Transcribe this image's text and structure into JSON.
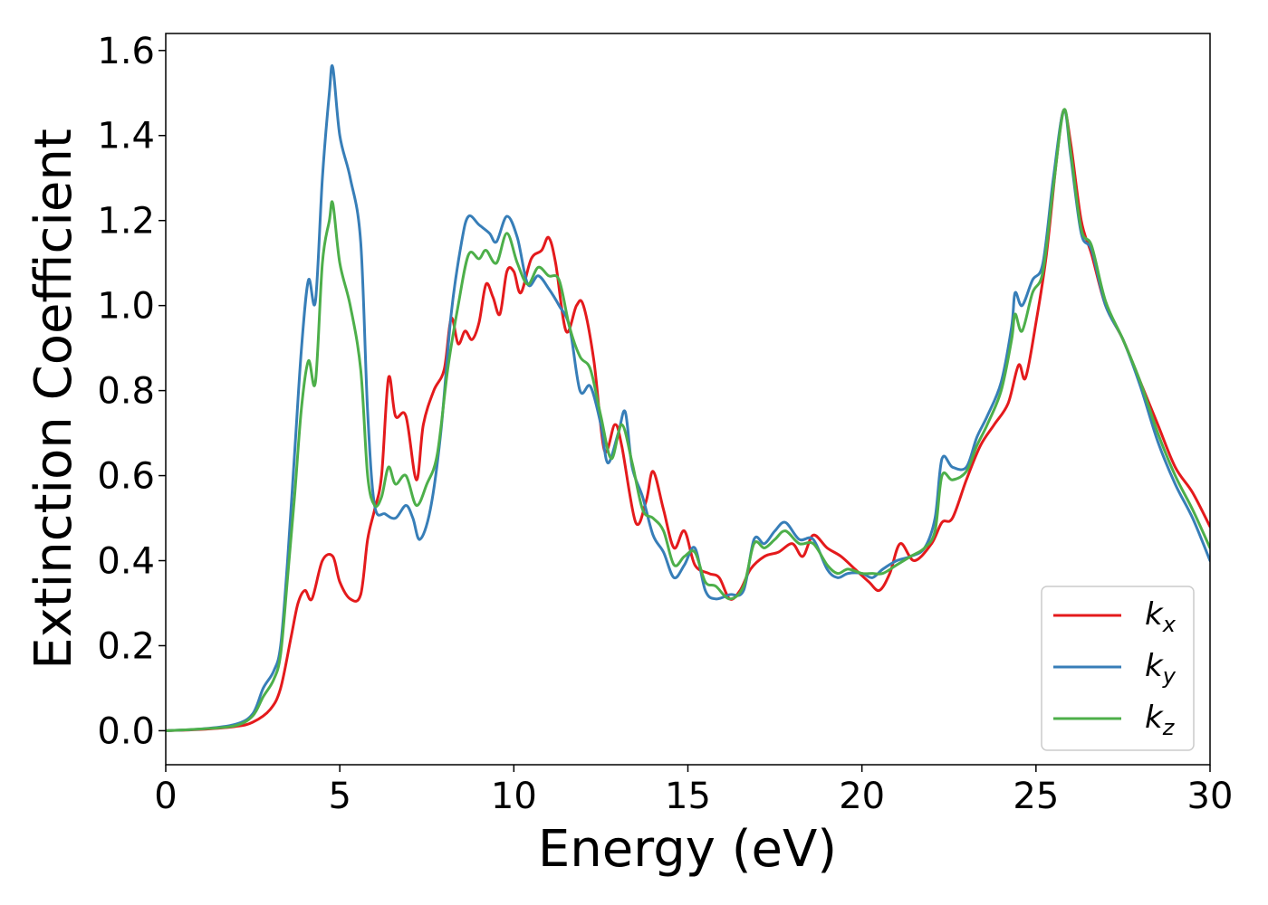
{
  "chart_data": {
    "type": "line",
    "title": "",
    "xlabel": "Energy (eV)",
    "ylabel": "Extinction Coefficient",
    "xlim": [
      0,
      30
    ],
    "ylim": [
      -0.08,
      1.64
    ],
    "xticks": [
      0,
      5,
      10,
      15,
      20,
      25,
      30
    ],
    "yticks": [
      0.0,
      0.2,
      0.4,
      0.6,
      0.8,
      1.0,
      1.2,
      1.4,
      1.6
    ],
    "xtick_labels": [
      "0",
      "5",
      "10",
      "15",
      "20",
      "25",
      "30"
    ],
    "ytick_labels": [
      "0.0",
      "0.2",
      "0.4",
      "0.6",
      "0.8",
      "1.0",
      "1.2",
      "1.4",
      "1.6"
    ],
    "grid": false,
    "legend_position": "lower-right",
    "series": [
      {
        "name": "k_x",
        "label_base": "k",
        "label_sub": "x",
        "color": "#e41a1c",
        "points": [
          [
            0,
            0
          ],
          [
            1,
            0.003
          ],
          [
            2,
            0.01
          ],
          [
            2.5,
            0.02
          ],
          [
            3,
            0.05
          ],
          [
            3.3,
            0.1
          ],
          [
            3.6,
            0.22
          ],
          [
            3.8,
            0.3
          ],
          [
            4.0,
            0.33
          ],
          [
            4.2,
            0.31
          ],
          [
            4.5,
            0.4
          ],
          [
            4.8,
            0.41
          ],
          [
            5.0,
            0.35
          ],
          [
            5.3,
            0.31
          ],
          [
            5.6,
            0.32
          ],
          [
            5.8,
            0.45
          ],
          [
            6.0,
            0.52
          ],
          [
            6.2,
            0.6
          ],
          [
            6.4,
            0.83
          ],
          [
            6.6,
            0.74
          ],
          [
            6.9,
            0.74
          ],
          [
            7.2,
            0.59
          ],
          [
            7.4,
            0.72
          ],
          [
            7.7,
            0.8
          ],
          [
            8.0,
            0.85
          ],
          [
            8.2,
            0.97
          ],
          [
            8.4,
            0.91
          ],
          [
            8.6,
            0.94
          ],
          [
            8.8,
            0.92
          ],
          [
            9.0,
            0.96
          ],
          [
            9.2,
            1.05
          ],
          [
            9.4,
            1.02
          ],
          [
            9.6,
            0.98
          ],
          [
            9.8,
            1.08
          ],
          [
            10.0,
            1.08
          ],
          [
            10.2,
            1.03
          ],
          [
            10.5,
            1.11
          ],
          [
            10.8,
            1.13
          ],
          [
            11.0,
            1.16
          ],
          [
            11.2,
            1.1
          ],
          [
            11.5,
            0.94
          ],
          [
            11.8,
            1.0
          ],
          [
            12.0,
            1.0
          ],
          [
            12.3,
            0.87
          ],
          [
            12.6,
            0.66
          ],
          [
            12.9,
            0.72
          ],
          [
            13.1,
            0.67
          ],
          [
            13.5,
            0.49
          ],
          [
            13.8,
            0.54
          ],
          [
            14.0,
            0.61
          ],
          [
            14.3,
            0.52
          ],
          [
            14.6,
            0.43
          ],
          [
            14.9,
            0.47
          ],
          [
            15.2,
            0.39
          ],
          [
            15.6,
            0.37
          ],
          [
            15.9,
            0.36
          ],
          [
            16.2,
            0.31
          ],
          [
            16.5,
            0.33
          ],
          [
            16.8,
            0.38
          ],
          [
            17.2,
            0.41
          ],
          [
            17.6,
            0.42
          ],
          [
            18.0,
            0.44
          ],
          [
            18.3,
            0.41
          ],
          [
            18.6,
            0.46
          ],
          [
            19.0,
            0.43
          ],
          [
            19.4,
            0.41
          ],
          [
            19.8,
            0.38
          ],
          [
            20.2,
            0.35
          ],
          [
            20.5,
            0.33
          ],
          [
            20.8,
            0.37
          ],
          [
            21.1,
            0.44
          ],
          [
            21.5,
            0.4
          ],
          [
            22.0,
            0.44
          ],
          [
            22.3,
            0.49
          ],
          [
            22.6,
            0.5
          ],
          [
            23.0,
            0.59
          ],
          [
            23.4,
            0.67
          ],
          [
            23.8,
            0.72
          ],
          [
            24.2,
            0.77
          ],
          [
            24.5,
            0.86
          ],
          [
            24.7,
            0.83
          ],
          [
            25.0,
            0.96
          ],
          [
            25.3,
            1.12
          ],
          [
            25.6,
            1.35
          ],
          [
            25.8,
            1.46
          ],
          [
            26.0,
            1.38
          ],
          [
            26.3,
            1.2
          ],
          [
            26.6,
            1.12
          ],
          [
            27.0,
            1.0
          ],
          [
            27.5,
            0.92
          ],
          [
            28.0,
            0.82
          ],
          [
            28.5,
            0.72
          ],
          [
            29.0,
            0.62
          ],
          [
            29.5,
            0.56
          ],
          [
            30.0,
            0.48
          ]
        ]
      },
      {
        "name": "k_y",
        "label_base": "k",
        "label_sub": "y",
        "color": "#377eb8",
        "points": [
          [
            0,
            0
          ],
          [
            1,
            0.004
          ],
          [
            2,
            0.015
          ],
          [
            2.5,
            0.04
          ],
          [
            2.8,
            0.1
          ],
          [
            3.1,
            0.14
          ],
          [
            3.3,
            0.2
          ],
          [
            3.5,
            0.4
          ],
          [
            3.7,
            0.65
          ],
          [
            3.9,
            0.9
          ],
          [
            4.1,
            1.06
          ],
          [
            4.3,
            1.01
          ],
          [
            4.5,
            1.3
          ],
          [
            4.7,
            1.5
          ],
          [
            4.8,
            1.56
          ],
          [
            5.0,
            1.4
          ],
          [
            5.3,
            1.3
          ],
          [
            5.6,
            1.15
          ],
          [
            5.8,
            0.75
          ],
          [
            6.0,
            0.53
          ],
          [
            6.3,
            0.51
          ],
          [
            6.6,
            0.5
          ],
          [
            6.9,
            0.53
          ],
          [
            7.1,
            0.5
          ],
          [
            7.3,
            0.45
          ],
          [
            7.6,
            0.52
          ],
          [
            7.9,
            0.7
          ],
          [
            8.2,
            0.98
          ],
          [
            8.5,
            1.15
          ],
          [
            8.7,
            1.21
          ],
          [
            9.0,
            1.19
          ],
          [
            9.3,
            1.17
          ],
          [
            9.5,
            1.15
          ],
          [
            9.8,
            1.21
          ],
          [
            10.1,
            1.16
          ],
          [
            10.4,
            1.05
          ],
          [
            10.7,
            1.07
          ],
          [
            11.0,
            1.04
          ],
          [
            11.3,
            1.0
          ],
          [
            11.6,
            0.95
          ],
          [
            11.9,
            0.8
          ],
          [
            12.2,
            0.81
          ],
          [
            12.5,
            0.72
          ],
          [
            12.7,
            0.63
          ],
          [
            13.0,
            0.7
          ],
          [
            13.2,
            0.75
          ],
          [
            13.4,
            0.62
          ],
          [
            13.7,
            0.55
          ],
          [
            14.0,
            0.46
          ],
          [
            14.3,
            0.42
          ],
          [
            14.6,
            0.36
          ],
          [
            14.9,
            0.39
          ],
          [
            15.2,
            0.43
          ],
          [
            15.5,
            0.33
          ],
          [
            15.8,
            0.31
          ],
          [
            16.2,
            0.32
          ],
          [
            16.6,
            0.33
          ],
          [
            16.9,
            0.45
          ],
          [
            17.2,
            0.44
          ],
          [
            17.5,
            0.47
          ],
          [
            17.8,
            0.49
          ],
          [
            18.2,
            0.45
          ],
          [
            18.6,
            0.45
          ],
          [
            19.0,
            0.38
          ],
          [
            19.3,
            0.36
          ],
          [
            19.6,
            0.37
          ],
          [
            20.0,
            0.37
          ],
          [
            20.3,
            0.36
          ],
          [
            20.6,
            0.38
          ],
          [
            21.0,
            0.4
          ],
          [
            21.4,
            0.41
          ],
          [
            21.8,
            0.43
          ],
          [
            22.1,
            0.5
          ],
          [
            22.3,
            0.64
          ],
          [
            22.6,
            0.62
          ],
          [
            23.0,
            0.62
          ],
          [
            23.3,
            0.69
          ],
          [
            23.6,
            0.74
          ],
          [
            24.0,
            0.82
          ],
          [
            24.3,
            0.95
          ],
          [
            24.4,
            1.03
          ],
          [
            24.6,
            1.0
          ],
          [
            24.9,
            1.06
          ],
          [
            25.2,
            1.1
          ],
          [
            25.5,
            1.3
          ],
          [
            25.8,
            1.46
          ],
          [
            26.0,
            1.35
          ],
          [
            26.3,
            1.17
          ],
          [
            26.6,
            1.13
          ],
          [
            27.0,
            1.0
          ],
          [
            27.5,
            0.92
          ],
          [
            28.0,
            0.81
          ],
          [
            28.5,
            0.68
          ],
          [
            29.0,
            0.58
          ],
          [
            29.5,
            0.5
          ],
          [
            30.0,
            0.4
          ]
        ]
      },
      {
        "name": "k_z",
        "label_base": "k",
        "label_sub": "z",
        "color": "#4daf4a",
        "points": [
          [
            0,
            0
          ],
          [
            1,
            0.004
          ],
          [
            2,
            0.012
          ],
          [
            2.5,
            0.035
          ],
          [
            2.8,
            0.08
          ],
          [
            3.1,
            0.12
          ],
          [
            3.3,
            0.18
          ],
          [
            3.5,
            0.36
          ],
          [
            3.7,
            0.55
          ],
          [
            3.9,
            0.76
          ],
          [
            4.1,
            0.87
          ],
          [
            4.3,
            0.82
          ],
          [
            4.5,
            1.1
          ],
          [
            4.7,
            1.2
          ],
          [
            4.8,
            1.24
          ],
          [
            5.0,
            1.1
          ],
          [
            5.3,
            1.0
          ],
          [
            5.6,
            0.85
          ],
          [
            5.8,
            0.6
          ],
          [
            6.0,
            0.53
          ],
          [
            6.2,
            0.55
          ],
          [
            6.4,
            0.62
          ],
          [
            6.6,
            0.58
          ],
          [
            6.9,
            0.6
          ],
          [
            7.2,
            0.53
          ],
          [
            7.5,
            0.58
          ],
          [
            7.8,
            0.65
          ],
          [
            8.1,
            0.85
          ],
          [
            8.4,
            1.0
          ],
          [
            8.7,
            1.12
          ],
          [
            9.0,
            1.11
          ],
          [
            9.2,
            1.13
          ],
          [
            9.5,
            1.1
          ],
          [
            9.8,
            1.17
          ],
          [
            10.1,
            1.1
          ],
          [
            10.4,
            1.05
          ],
          [
            10.7,
            1.09
          ],
          [
            11.0,
            1.07
          ],
          [
            11.3,
            1.06
          ],
          [
            11.6,
            0.95
          ],
          [
            11.9,
            0.88
          ],
          [
            12.2,
            0.85
          ],
          [
            12.5,
            0.74
          ],
          [
            12.8,
            0.64
          ],
          [
            13.1,
            0.72
          ],
          [
            13.4,
            0.63
          ],
          [
            13.7,
            0.52
          ],
          [
            14.0,
            0.5
          ],
          [
            14.3,
            0.47
          ],
          [
            14.6,
            0.39
          ],
          [
            14.9,
            0.41
          ],
          [
            15.2,
            0.42
          ],
          [
            15.5,
            0.35
          ],
          [
            15.8,
            0.34
          ],
          [
            16.2,
            0.31
          ],
          [
            16.6,
            0.34
          ],
          [
            16.9,
            0.44
          ],
          [
            17.2,
            0.43
          ],
          [
            17.5,
            0.45
          ],
          [
            17.8,
            0.47
          ],
          [
            18.2,
            0.44
          ],
          [
            18.6,
            0.44
          ],
          [
            19.0,
            0.39
          ],
          [
            19.3,
            0.37
          ],
          [
            19.6,
            0.38
          ],
          [
            20.0,
            0.37
          ],
          [
            20.3,
            0.37
          ],
          [
            20.6,
            0.37
          ],
          [
            21.0,
            0.39
          ],
          [
            21.4,
            0.41
          ],
          [
            21.8,
            0.43
          ],
          [
            22.1,
            0.47
          ],
          [
            22.3,
            0.6
          ],
          [
            22.6,
            0.59
          ],
          [
            23.0,
            0.61
          ],
          [
            23.3,
            0.67
          ],
          [
            23.6,
            0.72
          ],
          [
            24.0,
            0.8
          ],
          [
            24.3,
            0.92
          ],
          [
            24.4,
            0.98
          ],
          [
            24.6,
            0.94
          ],
          [
            24.9,
            1.03
          ],
          [
            25.2,
            1.08
          ],
          [
            25.5,
            1.28
          ],
          [
            25.8,
            1.46
          ],
          [
            26.0,
            1.36
          ],
          [
            26.3,
            1.18
          ],
          [
            26.6,
            1.14
          ],
          [
            27.0,
            1.01
          ],
          [
            27.5,
            0.92
          ],
          [
            28.0,
            0.82
          ],
          [
            28.5,
            0.7
          ],
          [
            29.0,
            0.6
          ],
          [
            29.5,
            0.52
          ],
          [
            30.0,
            0.43
          ]
        ]
      }
    ]
  }
}
